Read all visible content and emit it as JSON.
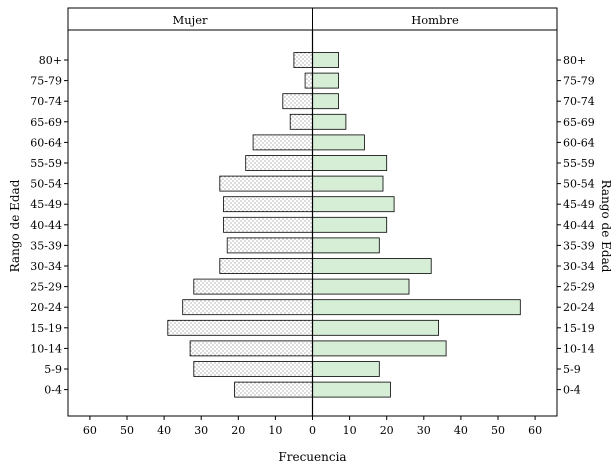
{
  "chart_data": {
    "type": "bar",
    "subtype": "population-pyramid",
    "orientation": "horizontal",
    "categories": [
      "0-4",
      "5-9",
      "10-14",
      "15-19",
      "20-24",
      "25-29",
      "30-34",
      "35-39",
      "40-44",
      "45-49",
      "50-54",
      "55-59",
      "60-64",
      "65-69",
      "70-74",
      "75-79",
      "80+"
    ],
    "series": [
      {
        "name": "Mujer",
        "side": "left",
        "fill": "dotted",
        "color": "#ffffff",
        "values": [
          21,
          32,
          33,
          39,
          35,
          32,
          25,
          23,
          24,
          24,
          25,
          18,
          16,
          6,
          8,
          2,
          5
        ]
      },
      {
        "name": "Hombre",
        "side": "right",
        "color": "#d6eed6",
        "values": [
          21,
          18,
          36,
          34,
          56,
          26,
          32,
          18,
          20,
          22,
          19,
          20,
          14,
          9,
          7,
          7,
          7
        ]
      }
    ],
    "xlabel": "Frecuencia",
    "ylabel_left": "Rango de Edad",
    "ylabel_right": "Rango de Edad",
    "x_ticks": [
      60,
      50,
      40,
      30,
      20,
      10,
      0,
      10,
      20,
      30,
      40,
      50,
      60
    ],
    "xlim": [
      -65,
      65
    ],
    "grid": false
  }
}
